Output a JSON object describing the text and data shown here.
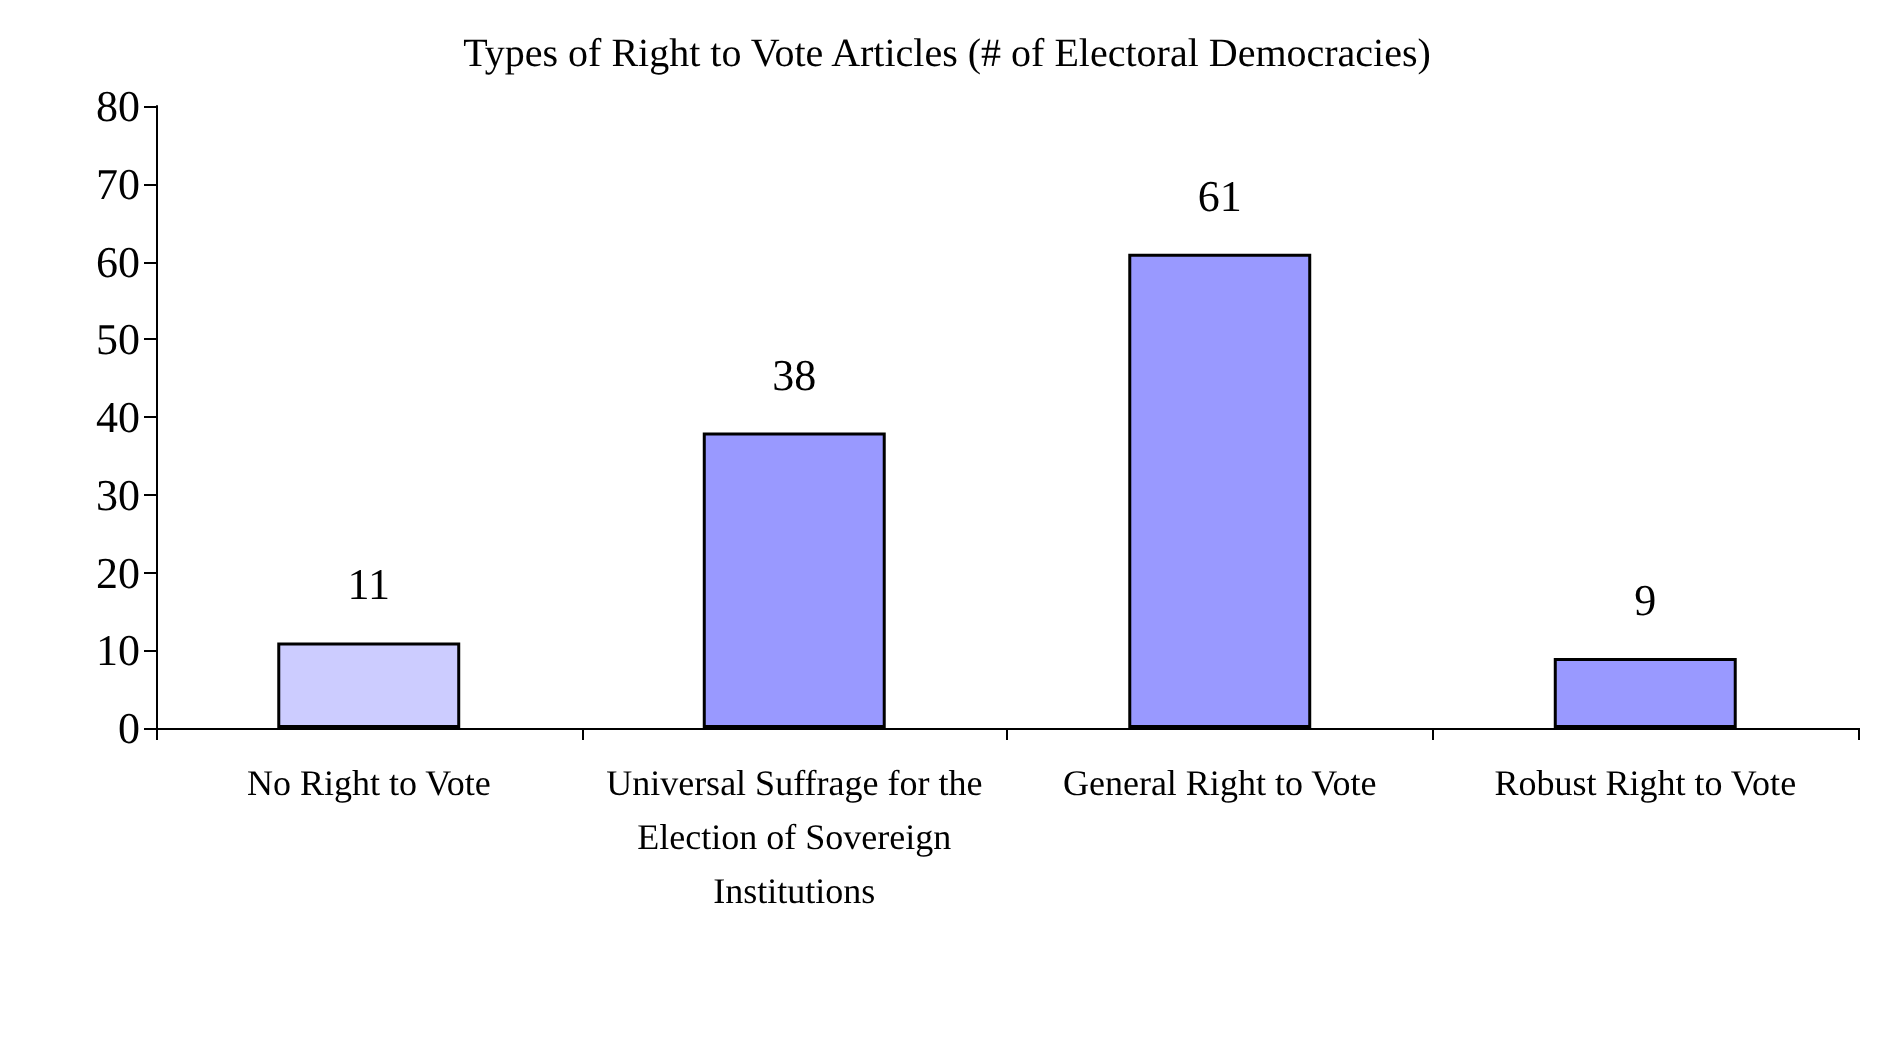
{
  "chart_data": {
    "type": "bar",
    "title": "Types of Right to Vote Articles (# of Electoral Democracies)",
    "categories": [
      "No Right to Vote",
      "Universal Suffrage for the Election of Sovereign Institutions",
      "General Right to Vote",
      "Robust Right to Vote"
    ],
    "values": [
      11,
      38,
      61,
      9
    ],
    "colors": [
      "#ccccff",
      "#9999ff",
      "#9999ff",
      "#9999ff"
    ],
    "ylim": [
      0,
      80
    ],
    "yticks": [
      0,
      10,
      20,
      30,
      40,
      50,
      60,
      70,
      80
    ],
    "grid": false,
    "data_labels": true
  }
}
